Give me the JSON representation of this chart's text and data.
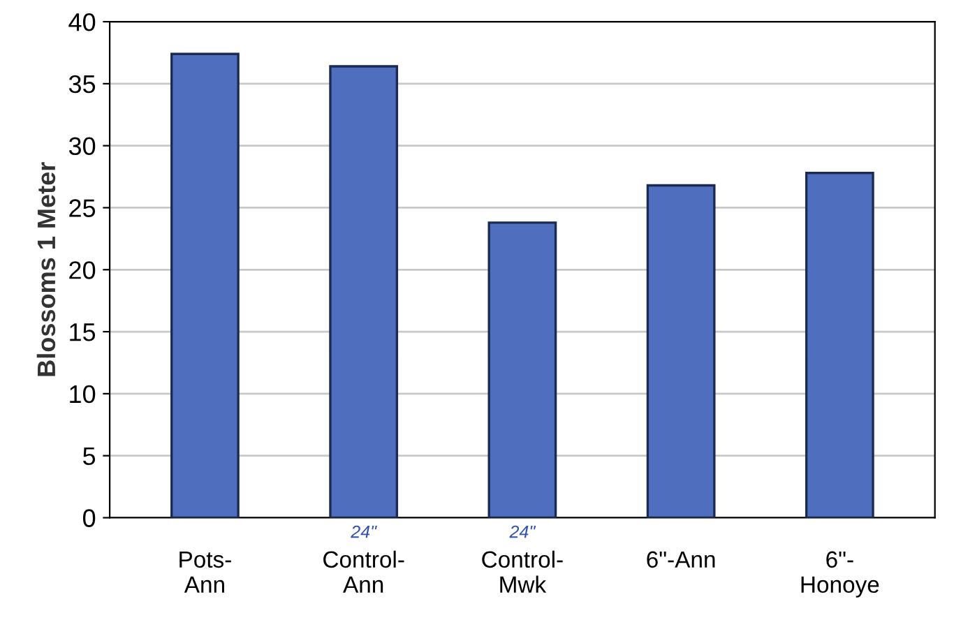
{
  "chart_data": {
    "type": "bar",
    "ylabel": "Blossoms 1 Meter",
    "categories": [
      "Pots-\nAnn",
      "Control-\nAnn",
      "Control-\nMwk",
      "6\"-Ann",
      "6\"-\nHonoye"
    ],
    "values": [
      37.4,
      36.4,
      23.8,
      26.8,
      27.8
    ],
    "color": "#4f6fbe",
    "ylim": [
      0,
      40
    ],
    "yticks": [
      0,
      5,
      10,
      15,
      20,
      25,
      30,
      35,
      40
    ],
    "grid": "y",
    "annotations": [
      "24\"",
      "24\""
    ]
  }
}
